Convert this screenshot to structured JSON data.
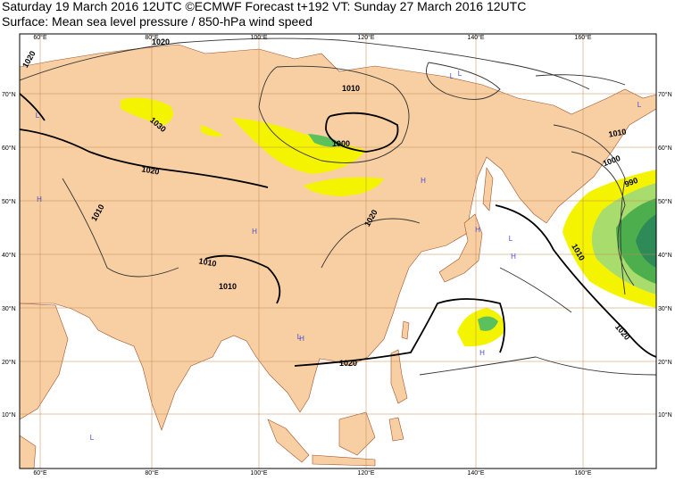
{
  "header": {
    "line1": "Saturday 19 March 2016 12UTC ©ECMWF Forecast t+192 VT: Sunday 27 March 2016 12UTC",
    "line2": "Surface: Mean sea level pressure / 850-hPa wind speed"
  },
  "lon_labels": [
    "60°E",
    "80°E",
    "100°E",
    "120°E",
    "140°E",
    "160°E"
  ],
  "lat_labels": [
    "70°N",
    "60°N",
    "50°N",
    "40°N",
    "30°N",
    "20°N",
    "10°N"
  ],
  "isobar_labels": [
    1020,
    1020,
    1010,
    1030,
    1000,
    1020,
    1010,
    1020,
    1010,
    1010,
    1010,
    1000,
    990,
    1010,
    1020,
    1020
  ],
  "centers": [
    "H",
    "L",
    "H",
    "L",
    "L",
    "H",
    "H",
    "L",
    "H",
    "L",
    "H",
    "L",
    "H",
    "L"
  ]
}
